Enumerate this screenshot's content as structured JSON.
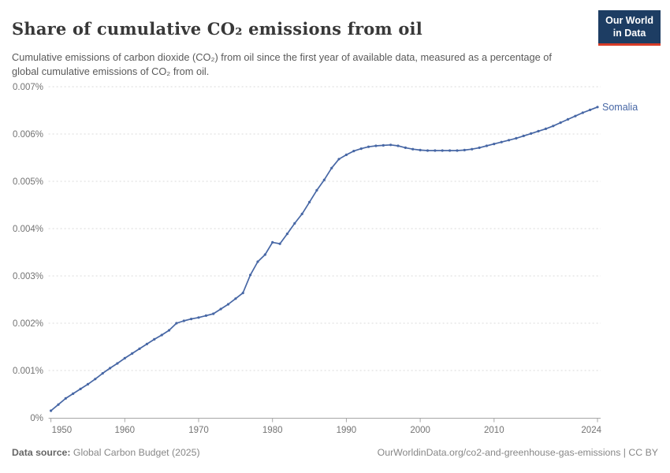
{
  "header": {
    "title": "Share of cumulative CO₂ emissions from oil",
    "subtitle": "Cumulative emissions of carbon dioxide (CO₂) from oil since the first year of available data, measured as a percentage of global cumulative emissions of CO₂ from oil."
  },
  "logo": {
    "line1": "Our World",
    "line2": "in Data",
    "bg_color": "#1d3d63",
    "accent_color": "#d73b27"
  },
  "footer": {
    "source_label": "Data source:",
    "source": " Global Carbon Budget (2025)",
    "link": "OurWorldinData.org/co2-and-greenhouse-gas-emissions",
    "license": " | CC BY"
  },
  "chart_data": {
    "type": "line",
    "title": "Share of cumulative CO₂ emissions from oil",
    "entity": "Somalia",
    "line_color": "#4767a5",
    "grid": true,
    "legend_position": "end-of-line",
    "xlim": [
      1950,
      2024
    ],
    "ylim": [
      0,
      0.007
    ],
    "xticks": [
      {
        "value": 1950,
        "label": "1950"
      },
      {
        "value": 1960,
        "label": "1960"
      },
      {
        "value": 1970,
        "label": "1970"
      },
      {
        "value": 1980,
        "label": "1980"
      },
      {
        "value": 1990,
        "label": "1990"
      },
      {
        "value": 2000,
        "label": "2000"
      },
      {
        "value": 2010,
        "label": "2010"
      },
      {
        "value": 2024,
        "label": "2024"
      }
    ],
    "yticks": [
      {
        "value": 0,
        "label": "0%"
      },
      {
        "value": 0.001,
        "label": "0.001%"
      },
      {
        "value": 0.002,
        "label": "0.002%"
      },
      {
        "value": 0.003,
        "label": "0.003%"
      },
      {
        "value": 0.004,
        "label": "0.004%"
      },
      {
        "value": 0.005,
        "label": "0.005%"
      },
      {
        "value": 0.006,
        "label": "0.006%"
      },
      {
        "value": 0.007,
        "label": "0.007%"
      }
    ],
    "x": [
      1950,
      1951,
      1952,
      1953,
      1954,
      1955,
      1956,
      1957,
      1958,
      1959,
      1960,
      1961,
      1962,
      1963,
      1964,
      1965,
      1966,
      1967,
      1968,
      1969,
      1970,
      1971,
      1972,
      1973,
      1974,
      1975,
      1976,
      1977,
      1978,
      1979,
      1980,
      1981,
      1982,
      1983,
      1984,
      1985,
      1986,
      1987,
      1988,
      1989,
      1990,
      1991,
      1992,
      1993,
      1994,
      1995,
      1996,
      1997,
      1998,
      1999,
      2000,
      2001,
      2002,
      2003,
      2004,
      2005,
      2006,
      2007,
      2008,
      2009,
      2010,
      2011,
      2012,
      2013,
      2014,
      2015,
      2016,
      2017,
      2018,
      2019,
      2020,
      2021,
      2022,
      2023,
      2024
    ],
    "values": [
      0.00015,
      0.00028,
      0.00041,
      0.00051,
      0.00061,
      0.00071,
      0.00082,
      0.00094,
      0.00105,
      0.00115,
      0.00126,
      0.00136,
      0.00146,
      0.00156,
      0.00166,
      0.00175,
      0.00185,
      0.002,
      0.00205,
      0.00209,
      0.00212,
      0.00216,
      0.0022,
      0.0023,
      0.0024,
      0.00252,
      0.00264,
      0.00302,
      0.0033,
      0.00345,
      0.00371,
      0.00368,
      0.00389,
      0.00411,
      0.00431,
      0.00456,
      0.00481,
      0.00503,
      0.00528,
      0.00547,
      0.00556,
      0.00564,
      0.00569,
      0.00573,
      0.00575,
      0.00576,
      0.00577,
      0.00575,
      0.00571,
      0.00568,
      0.00566,
      0.00565,
      0.00565,
      0.00565,
      0.00565,
      0.00565,
      0.00566,
      0.00568,
      0.00571,
      0.00575,
      0.00579,
      0.00583,
      0.00587,
      0.00591,
      0.00596,
      0.00601,
      0.00606,
      0.00611,
      0.00617,
      0.00624,
      0.00631,
      0.00638,
      0.00645,
      0.00651,
      0.00657
    ],
    "ylabel": "",
    "xlabel": ""
  }
}
